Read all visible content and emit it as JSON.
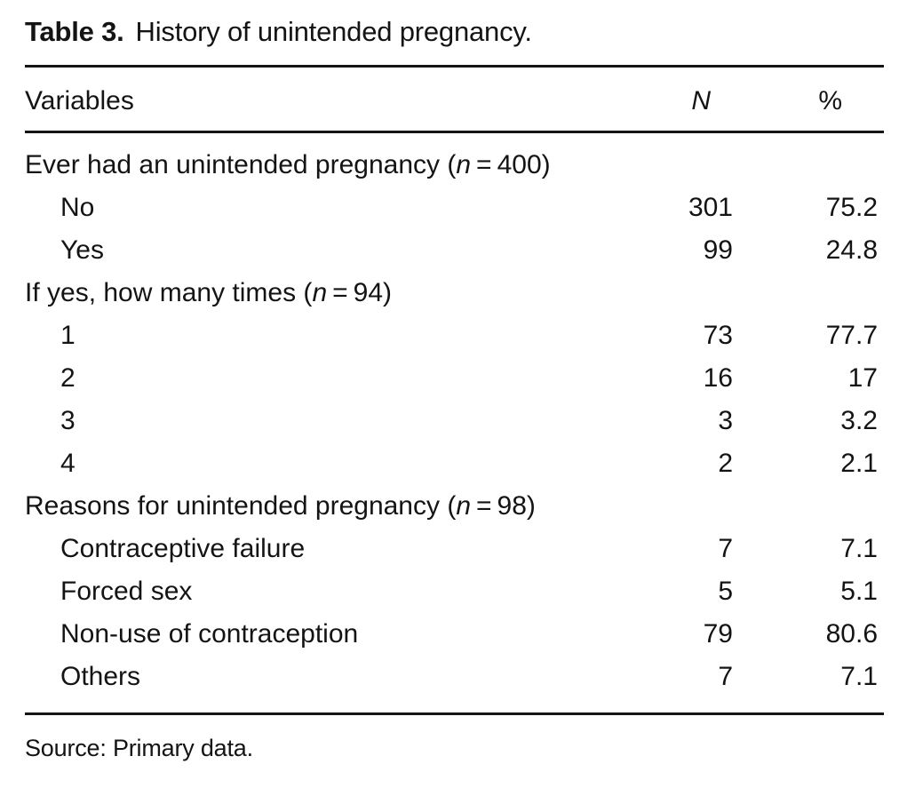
{
  "title": {
    "label": "Table 3.",
    "caption": "History of unintended pregnancy."
  },
  "columns": {
    "variables": "Variables",
    "n": "N",
    "percent": "%"
  },
  "rows": [
    {
      "label": "Ever had an unintended pregnancy (n = 400)",
      "indent": false,
      "n": "",
      "pct": ""
    },
    {
      "label": "No",
      "indent": true,
      "n": "301",
      "pct": "75.2"
    },
    {
      "label": "Yes",
      "indent": true,
      "n": "99",
      "pct": "24.8"
    },
    {
      "label": "If yes, how many times (n = 94)",
      "indent": false,
      "n": "",
      "pct": ""
    },
    {
      "label": "1",
      "indent": true,
      "n": "73",
      "pct": "77.7"
    },
    {
      "label": "2",
      "indent": true,
      "n": "16",
      "pct": "17"
    },
    {
      "label": "3",
      "indent": true,
      "n": "3",
      "pct": "3.2"
    },
    {
      "label": "4",
      "indent": true,
      "n": "2",
      "pct": "2.1"
    },
    {
      "label": "Reasons for unintended pregnancy (n = 98)",
      "indent": false,
      "n": "",
      "pct": ""
    },
    {
      "label": "Contraceptive failure",
      "indent": true,
      "n": "7",
      "pct": "7.1"
    },
    {
      "label": "Forced sex",
      "indent": true,
      "n": "5",
      "pct": "5.1"
    },
    {
      "label": "Non-use of contraception",
      "indent": true,
      "n": "79",
      "pct": "80.6"
    },
    {
      "label": "Others",
      "indent": true,
      "n": "7",
      "pct": "7.1"
    }
  ],
  "source": "Source: Primary data.",
  "colors": {
    "text": "#141414",
    "rule": "#151515",
    "background": "#ffffff"
  }
}
